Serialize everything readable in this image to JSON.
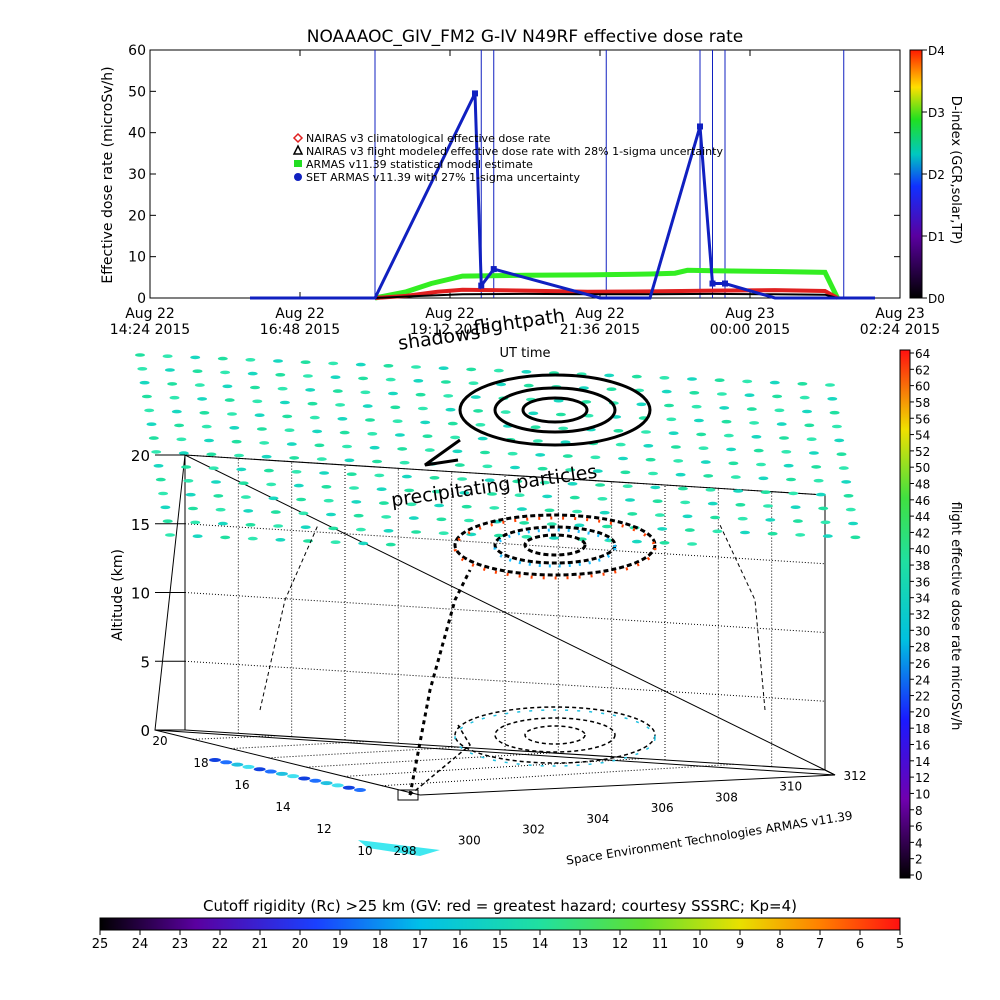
{
  "chart_data": [
    {
      "type": "line",
      "title": "NOAAAOC_GIV_FM2  G-IV    N49RF   effective dose rate",
      "xlabel": "UT time",
      "ylabel": "Effective dose rate (microSv/h)",
      "ylim": [
        0,
        60
      ],
      "yticks": [
        "0",
        "10",
        "20",
        "30",
        "40",
        "50",
        "60"
      ],
      "xtick_labels": [
        [
          "Aug 22",
          "14:24 2015"
        ],
        [
          "Aug 22",
          "16:48 2015"
        ],
        [
          "Aug 22",
          "19:12 2015"
        ],
        [
          "Aug 22",
          "21:36 2015"
        ],
        [
          "Aug 23",
          "00:00 2015"
        ],
        [
          "Aug 23",
          "02:24 2015"
        ]
      ],
      "xrange_hours": [
        0,
        12
      ],
      "legend": [
        {
          "label": "NAIRAS v3 climatological effective dose rate",
          "marker": "diamond",
          "color": "#e02020"
        },
        {
          "label": "NAIRAS v3 flight modeled effective dose rate with 28% 1-sigma uncertainty",
          "marker": "triangle",
          "color": "#000000"
        },
        {
          "label": "ARMAS v11.39 statistical model estimate",
          "marker": "square",
          "color": "#22dd22"
        },
        {
          "label": "SET ARMAS v11.39 with 27% 1-sigma uncertainty",
          "marker": "circle",
          "color": "#1020c0"
        }
      ],
      "legend_position": "upper-left-center",
      "series": [
        {
          "name": "ARMAS v11.39 statistical model estimate",
          "color": "#33ee22",
          "x": [
            3.6,
            4.1,
            4.5,
            5.0,
            6.0,
            7.0,
            8.0,
            8.4,
            8.6,
            9.0,
            10.0,
            10.8,
            11.0
          ],
          "y": [
            0,
            1.5,
            3.5,
            5.3,
            5.5,
            5.6,
            5.8,
            6.0,
            6.7,
            6.6,
            6.4,
            6.2,
            0
          ]
        },
        {
          "name": "NAIRAS v3 climatological effective dose rate",
          "color": "#e02020",
          "x": [
            3.6,
            4.1,
            4.6,
            5.0,
            6.0,
            7.0,
            8.0,
            9.0,
            10.0,
            10.8,
            11.0
          ],
          "y": [
            0,
            0.5,
            1.5,
            2.0,
            1.8,
            1.5,
            1.6,
            1.8,
            1.9,
            1.7,
            0
          ]
        },
        {
          "name": "NAIRAS v3 flight modeled effective dose rate with 28% 1-sigma uncertainty",
          "color": "#000000",
          "x": [
            3.6,
            4.2,
            5.0,
            6.0,
            7.0,
            8.0,
            9.0,
            10.0,
            10.8,
            11.0
          ],
          "y": [
            0,
            0.4,
            0.9,
            1.0,
            0.9,
            0.9,
            1.0,
            0.9,
            0.8,
            0
          ]
        },
        {
          "name": "SET ARMAS v11.39 with 27% 1-sigma uncertainty",
          "color": "#1020c0",
          "x": [
            1.6,
            2.5,
            3.2,
            3.6,
            5.2,
            5.3,
            5.5,
            7.2,
            8.0,
            8.8,
            9.0,
            9.2,
            10.0,
            11.1,
            11.6
          ],
          "y": [
            0,
            0,
            0,
            0,
            49.5,
            3.0,
            7.0,
            0,
            0,
            41.5,
            3.5,
            3.5,
            0,
            0,
            0
          ]
        }
      ],
      "spikes_hours": [
        3.6,
        5.3,
        5.5,
        7.3,
        8.8,
        9.0,
        9.2,
        11.1
      ]
    },
    {
      "type": "colorbar",
      "label": "D-index (GCR,solar,TP)",
      "tick_labels": [
        "D0",
        "D1",
        "D2",
        "D3",
        "D4"
      ],
      "range": [
        0,
        4
      ]
    },
    {
      "type": "scatter3d",
      "annotations": [
        "flightpath",
        "shadows",
        "precipitating particles"
      ],
      "zlabel": "Altitude (km)",
      "zticks": [
        "0",
        "5",
        "10",
        "15",
        "20"
      ],
      "lat_ticks": [
        "10",
        "12",
        "14",
        "16",
        "18",
        "20"
      ],
      "lon_ticks": [
        "298",
        "300",
        "302",
        "304",
        "306",
        "308",
        "310",
        "312"
      ],
      "credit": "Space Environment Technologies ARMAS v11.39",
      "flight_path_center": {
        "lon": 305,
        "lat": 17
      },
      "ceiling_km": 13.5
    },
    {
      "type": "colorbar",
      "label": "flight effective dose rate microSv/h",
      "tick_labels": [
        "0",
        "2",
        "4",
        "6",
        "8",
        "10",
        "12",
        "14",
        "16",
        "18",
        "20",
        "22",
        "24",
        "26",
        "28",
        "30",
        "32",
        "34",
        "36",
        "38",
        "40",
        "42",
        "44",
        "46",
        "48",
        "50",
        "52",
        "54",
        "56",
        "58",
        "60",
        "62",
        "64"
      ],
      "range": [
        0,
        64
      ]
    },
    {
      "type": "colorbar",
      "label": "Cutoff rigidity (Rc) >25 km (GV: red = greatest hazard; courtesy SSSRC; Kp=4)",
      "tick_labels": [
        "25",
        "24",
        "23",
        "22",
        "21",
        "20",
        "19",
        "18",
        "17",
        "16",
        "15",
        "14",
        "13",
        "12",
        "11",
        "10",
        "9",
        "8",
        "7",
        "6",
        "5"
      ],
      "range": [
        25,
        5
      ]
    }
  ]
}
